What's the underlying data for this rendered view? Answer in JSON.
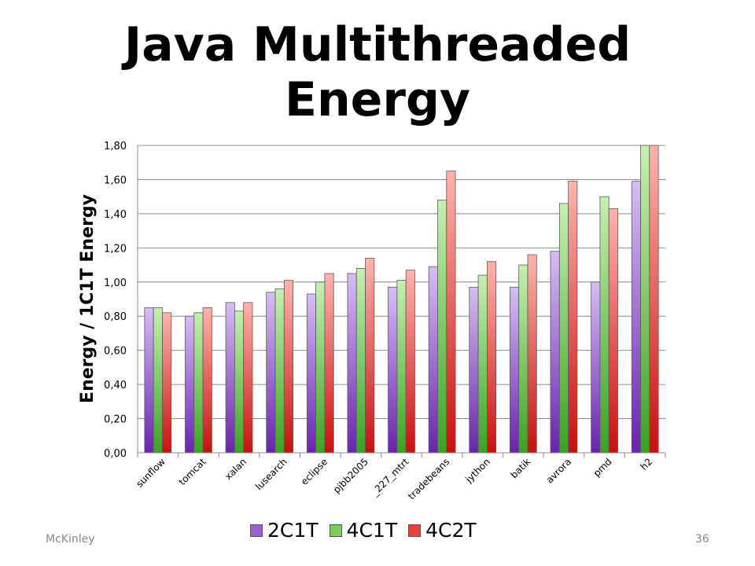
{
  "slide": {
    "title_line1": "Java Multithreaded",
    "title_line2": "Energy",
    "footer_left": "McKinley",
    "footer_right": "36"
  },
  "chart_data": {
    "type": "bar",
    "title": "",
    "xlabel": "",
    "ylabel": "Energy / 1C1T Energy",
    "ylim": [
      0,
      1.8
    ],
    "yticks": [
      "0,00",
      "0,20",
      "0,40",
      "0,60",
      "0,80",
      "1,00",
      "1,20",
      "1,40",
      "1,60",
      "1,80"
    ],
    "grid": true,
    "legend_position": "bottom",
    "categories": [
      "sunflow",
      "tomcat",
      "xalan",
      "lusearch",
      "eclipse",
      "pjbb2005",
      "_227_mtrt",
      "tradebeans",
      "jython",
      "batik",
      "avrora",
      "pmd",
      "h2"
    ],
    "series": [
      {
        "name": "2C1T",
        "color": "#9b5fd6",
        "values": [
          0.85,
          0.8,
          0.88,
          0.94,
          0.93,
          1.05,
          0.97,
          1.09,
          0.97,
          0.97,
          1.18,
          1.0,
          1.59
        ]
      },
      {
        "name": "4C1T",
        "color": "#7ccf58",
        "values": [
          0.85,
          0.82,
          0.83,
          0.96,
          1.0,
          1.08,
          1.01,
          1.48,
          1.04,
          1.1,
          1.46,
          1.5,
          1.8
        ]
      },
      {
        "name": "4C2T",
        "color": "#e8403c",
        "values": [
          0.82,
          0.85,
          0.88,
          1.01,
          1.05,
          1.14,
          1.07,
          1.65,
          1.12,
          1.16,
          1.59,
          1.43,
          1.8
        ]
      }
    ]
  }
}
